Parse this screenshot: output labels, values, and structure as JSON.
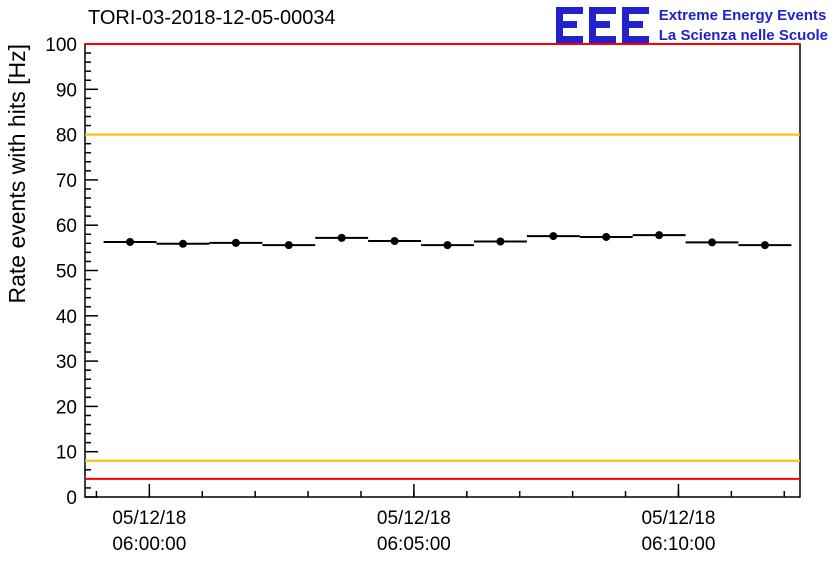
{
  "header": {
    "logo": {
      "mark": "EEE",
      "line1": "Extreme Energy Events",
      "line2": "La Scienza nelle Scuole"
    }
  },
  "chart_data": {
    "type": "line",
    "title": "TORI-03-2018-12-05-00034",
    "xlabel": "",
    "ylabel": "Rate events with hits [Hz]",
    "ylim": [
      0,
      100
    ],
    "y_tick_step": 10,
    "y_minor_step": 2,
    "grid": false,
    "legend": "none",
    "x_ticks": [
      {
        "frac": 0.09,
        "date": "05/12/18",
        "time": "06:00:00"
      },
      {
        "frac": 0.46,
        "date": "05/12/18",
        "time": "06:05:00"
      },
      {
        "frac": 0.83,
        "date": "05/12/18",
        "time": "06:10:00"
      }
    ],
    "x_minor_start_frac": 0.016,
    "x_minor_step_frac": 0.074,
    "reference_lines": [
      {
        "y": 100,
        "color": "#ff0000",
        "label": "upper-alarm"
      },
      {
        "y": 80,
        "color": "#ffbb00",
        "label": "upper-warning"
      },
      {
        "y": 8,
        "color": "#ffbb00",
        "label": "lower-warning"
      },
      {
        "y": 4,
        "color": "#ff0000",
        "label": "lower-alarm"
      }
    ],
    "series": [
      {
        "name": "rate-events-with-hits",
        "color": "#000000",
        "marker": "circle",
        "xerr_frac": 0.037,
        "yerr": 0.6,
        "points": [
          {
            "x_frac": 0.063,
            "y": 56.3
          },
          {
            "x_frac": 0.137,
            "y": 55.9
          },
          {
            "x_frac": 0.211,
            "y": 56.1
          },
          {
            "x_frac": 0.285,
            "y": 55.6
          },
          {
            "x_frac": 0.359,
            "y": 57.2
          },
          {
            "x_frac": 0.433,
            "y": 56.5
          },
          {
            "x_frac": 0.507,
            "y": 55.6
          },
          {
            "x_frac": 0.581,
            "y": 56.4
          },
          {
            "x_frac": 0.655,
            "y": 57.6
          },
          {
            "x_frac": 0.729,
            "y": 57.4
          },
          {
            "x_frac": 0.803,
            "y": 57.8
          },
          {
            "x_frac": 0.877,
            "y": 56.2
          },
          {
            "x_frac": 0.951,
            "y": 55.6
          }
        ]
      }
    ]
  }
}
